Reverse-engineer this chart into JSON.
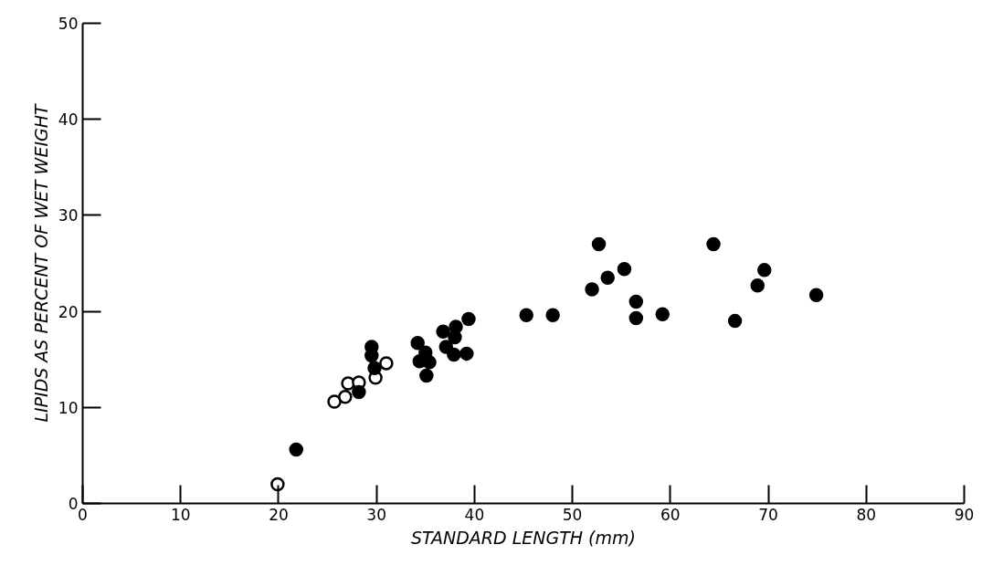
{
  "chart_data": {
    "type": "scatter",
    "xlabel": "STANDARD LENGTH (mm)",
    "ylabel": "LIPIDS AS PERCENT OF WET WEIGHT",
    "xlim": [
      0,
      90
    ],
    "ylim": [
      0,
      50
    ],
    "xticks": [
      0,
      10,
      20,
      30,
      40,
      50,
      60,
      70,
      80,
      90
    ],
    "yticks": [
      0,
      10,
      20,
      30,
      40,
      50
    ],
    "grid": false,
    "marker": "circle",
    "series": [
      {
        "color": "#ffffff",
        "x": [
          19.9,
          25.7,
          26.8,
          27.1,
          28.2,
          29.9,
          31.0
        ],
        "values": [
          2.0,
          10.6,
          11.1,
          12.5,
          12.6,
          13.1,
          14.6
        ]
      },
      {
        "color": "#000000",
        "x": [
          21.8,
          28.2,
          29.5,
          29.5,
          29.8,
          34.2,
          34.4,
          35.0,
          35.4,
          35.1,
          36.8,
          37.1,
          38.0,
          38.1,
          37.9,
          39.2,
          39.4,
          45.3,
          48.0,
          52.0,
          52.7,
          53.6,
          55.3,
          56.5,
          56.5,
          59.2,
          64.4,
          66.6,
          68.9,
          69.6,
          74.9
        ],
        "values": [
          5.6,
          11.6,
          16.3,
          15.4,
          14.1,
          16.7,
          14.8,
          15.7,
          14.7,
          13.3,
          17.9,
          16.3,
          17.3,
          18.4,
          15.5,
          15.6,
          19.2,
          19.6,
          19.6,
          22.3,
          27.0,
          23.5,
          24.4,
          21.0,
          19.3,
          19.7,
          27.0,
          19.0,
          22.7,
          24.3,
          21.7
        ]
      }
    ]
  }
}
